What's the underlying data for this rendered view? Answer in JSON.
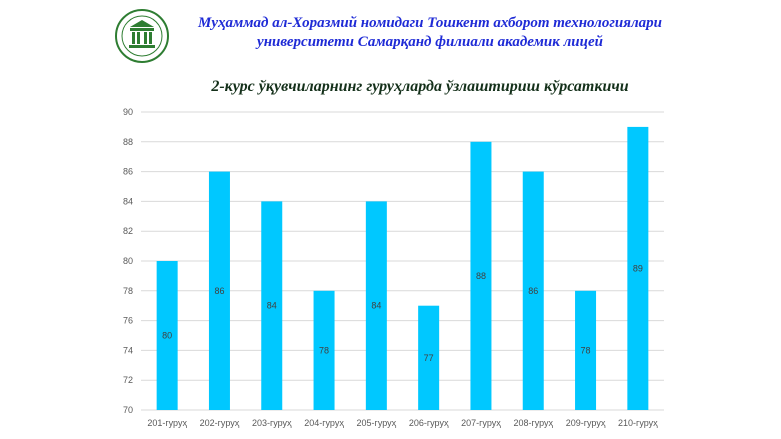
{
  "header": {
    "line1": "Муҳаммад ал-Хоразмий номидаги Тошкент ахборот технологиялари",
    "line2": "университети Самарқанд филиали академик лицей"
  },
  "colors": {
    "bar": "#00c8ff",
    "header_text": "#1f2bd6",
    "logo": "#2e7d32"
  },
  "chart_data": {
    "type": "bar",
    "title": "2-курс ўқувчиларнинг гуруҳларда ўзлаштириш кўрсаткичи",
    "categories": [
      "201-гуруҳ",
      "202-гуруҳ",
      "203-гуруҳ",
      "204-гуруҳ",
      "205-гуруҳ",
      "206-гуруҳ",
      "207-гуруҳ",
      "208-гуруҳ",
      "209-гуруҳ",
      "210-гуруҳ"
    ],
    "values": [
      80,
      86,
      84,
      78,
      84,
      77,
      88,
      86,
      78,
      89
    ],
    "ylim": [
      70,
      90
    ],
    "yticks": [
      70,
      72,
      74,
      76,
      78,
      80,
      82,
      84,
      86,
      88,
      90
    ],
    "grid": true,
    "data_labels": true,
    "legend": "none"
  }
}
